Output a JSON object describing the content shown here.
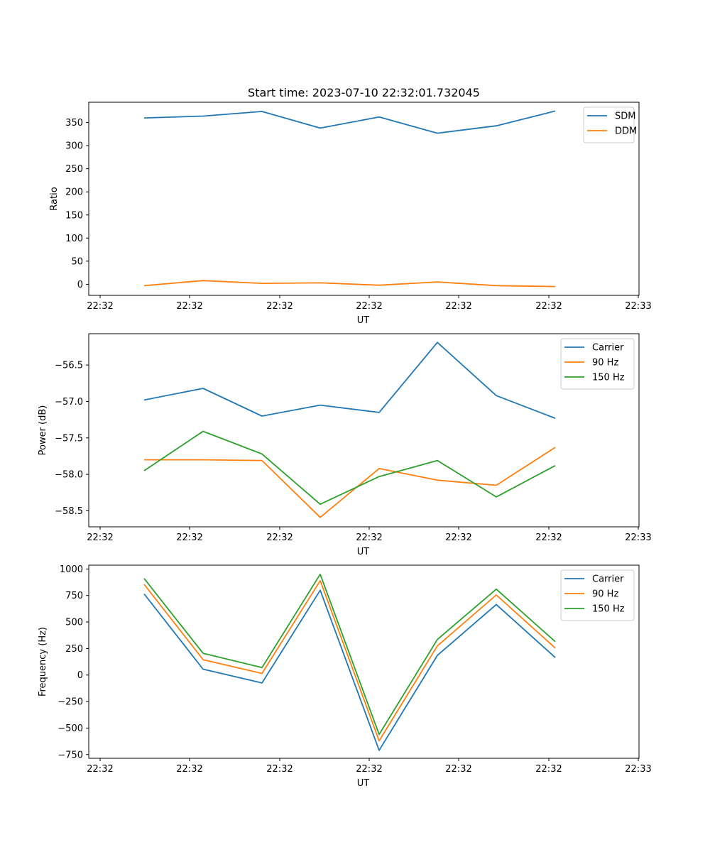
{
  "chart_data": [
    {
      "type": "line",
      "title": "Start time: 2023-07-10 22:32:01.732045",
      "xlabel": "UT",
      "ylabel": "Ratio",
      "x_tick_labels": [
        "22:32",
        "22:32",
        "22:32",
        "22:32",
        "22:32",
        "22:32",
        "22:32",
        "22:33"
      ],
      "ylim": [
        -24,
        394
      ],
      "y_ticks": [
        0,
        50,
        100,
        150,
        200,
        250,
        300,
        350
      ],
      "legend_position": "top-right",
      "series": [
        {
          "name": "SDM",
          "color": "#1f77b4",
          "values": [
            360,
            364,
            374,
            338,
            362,
            327,
            343,
            375
          ]
        },
        {
          "name": "DDM",
          "color": "#ff7f0e",
          "values": [
            -3,
            8,
            2,
            3,
            -2,
            5,
            -3,
            -5
          ]
        }
      ]
    },
    {
      "type": "line",
      "title": "",
      "xlabel": "UT",
      "ylabel": "Power (dB)",
      "x_tick_labels": [
        "22:32",
        "22:32",
        "22:32",
        "22:32",
        "22:32",
        "22:32",
        "22:32",
        "22:33"
      ],
      "ylim": [
        -58.72,
        -56.07
      ],
      "y_ticks": [
        -58.5,
        -58.0,
        -57.5,
        -57.0,
        -56.5
      ],
      "legend_position": "top-right",
      "series": [
        {
          "name": "Carrier",
          "color": "#1f77b4",
          "values": [
            -56.98,
            -56.82,
            -57.2,
            -57.05,
            -57.15,
            -56.19,
            -56.92,
            -57.23
          ]
        },
        {
          "name": "90 Hz",
          "color": "#ff7f0e",
          "values": [
            -57.8,
            -57.8,
            -57.81,
            -58.59,
            -57.92,
            -58.08,
            -58.15,
            -57.63
          ]
        },
        {
          "name": "150 Hz",
          "color": "#2ca02c",
          "values": [
            -57.95,
            -57.41,
            -57.72,
            -58.41,
            -58.03,
            -57.81,
            -58.31,
            -57.88
          ]
        }
      ]
    },
    {
      "type": "line",
      "title": "",
      "xlabel": "UT",
      "ylabel": "Frequency (Hz)",
      "x_tick_labels": [
        "22:32",
        "22:32",
        "22:32",
        "22:32",
        "22:32",
        "22:32",
        "22:32",
        "22:33"
      ],
      "ylim": [
        -785,
        1036
      ],
      "y_ticks": [
        -750,
        -500,
        -250,
        0,
        250,
        500,
        750,
        1000
      ],
      "legend_position": "top-right",
      "series": [
        {
          "name": "Carrier",
          "color": "#1f77b4",
          "values": [
            765,
            55,
            -75,
            800,
            -710,
            185,
            665,
            165
          ]
        },
        {
          "name": "90 Hz",
          "color": "#ff7f0e",
          "values": [
            855,
            145,
            15,
            890,
            -620,
            275,
            755,
            255
          ]
        },
        {
          "name": "150 Hz",
          "color": "#2ca02c",
          "values": [
            910,
            205,
            70,
            950,
            -560,
            335,
            810,
            315
          ]
        }
      ]
    }
  ]
}
